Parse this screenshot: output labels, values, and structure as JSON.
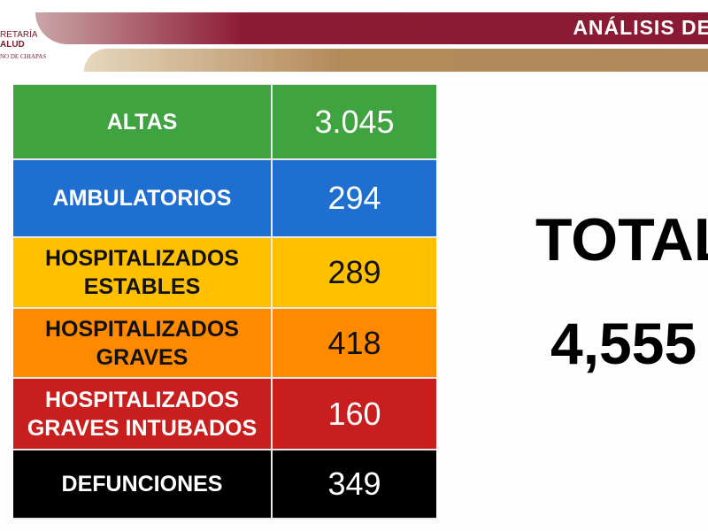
{
  "header": {
    "logo_line1": "RETARÍA",
    "logo_line2": "ALUD",
    "logo_line3": "NO DE CHIAPAS",
    "title": "ANÁLISIS DE"
  },
  "table": {
    "rows": [
      [
        "ALTAS",
        "3.045"
      ],
      [
        "AMBULATORIOS",
        "294"
      ],
      [
        "HOSPITALIZADOS ESTABLES",
        "289"
      ],
      [
        "HOSPITALIZADOS GRAVES",
        "418"
      ],
      [
        "HOSPITALIZADOS GRAVES INTUBADOS",
        "160"
      ],
      [
        "DEFUNCIONES",
        "349"
      ]
    ]
  },
  "total": {
    "label": "TOTAL",
    "value": "4,555"
  }
}
